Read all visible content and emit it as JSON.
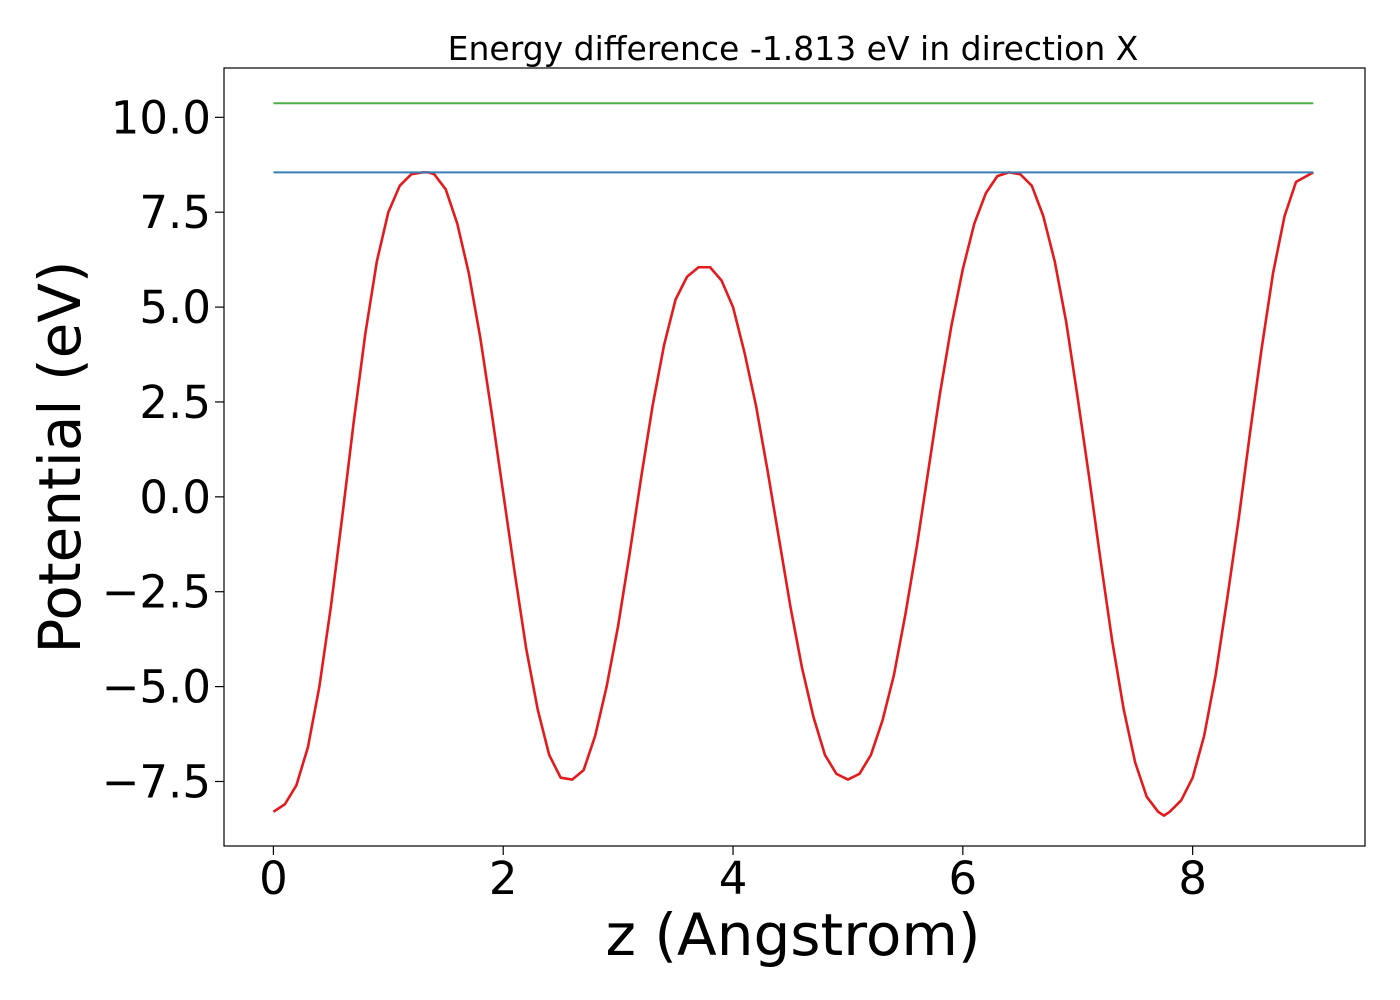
{
  "chart_data": {
    "type": "line",
    "title": "Energy difference -1.813 eV in direction X",
    "xlabel": "z (Angstrom)",
    "ylabel": "Potential (eV)",
    "xlim": [
      -0.43,
      9.5
    ],
    "ylim": [
      -9.2,
      11.3
    ],
    "x_ticks": [
      0,
      2,
      4,
      6,
      8
    ],
    "x_tick_labels": [
      "0",
      "2",
      "4",
      "6",
      "8"
    ],
    "y_ticks": [
      10.0,
      7.5,
      5.0,
      2.5,
      0.0,
      -2.5,
      -5.0,
      -7.5
    ],
    "y_tick_labels": [
      "10.0",
      "7.5",
      "5.0",
      "2.5",
      "0.0",
      "−2.5",
      "−5.0",
      "−7.5"
    ],
    "grid": false,
    "legend": "none",
    "series": [
      {
        "color": "#e41a1c",
        "x": [
          0.0,
          0.1,
          0.2,
          0.3,
          0.4,
          0.5,
          0.6,
          0.7,
          0.8,
          0.9,
          1.0,
          1.1,
          1.2,
          1.3,
          1.35,
          1.4,
          1.5,
          1.6,
          1.7,
          1.8,
          1.9,
          2.0,
          2.1,
          2.2,
          2.3,
          2.4,
          2.5,
          2.6,
          2.7,
          2.8,
          2.9,
          3.0,
          3.1,
          3.2,
          3.3,
          3.4,
          3.5,
          3.6,
          3.7,
          3.8,
          3.9,
          4.0,
          4.1,
          4.2,
          4.3,
          4.4,
          4.5,
          4.55,
          4.6,
          4.7,
          4.8,
          4.9,
          5.0,
          5.1,
          5.2,
          5.3,
          5.4,
          5.5,
          5.6,
          5.7,
          5.8,
          5.9,
          6.0,
          6.1,
          6.2,
          6.3,
          6.4,
          6.5,
          6.6,
          6.7,
          6.8,
          6.9,
          7.0,
          7.1,
          7.2,
          7.3,
          7.4,
          7.5,
          7.6,
          7.7,
          7.75,
          7.8,
          7.9,
          8.0,
          8.1,
          8.2,
          8.3,
          8.4,
          8.5,
          8.6,
          8.7,
          8.8,
          8.9,
          9.05
        ],
        "y": [
          -8.3,
          -8.1,
          -7.6,
          -6.6,
          -5.0,
          -2.9,
          -0.5,
          2.0,
          4.3,
          6.2,
          7.5,
          8.2,
          8.5,
          8.55,
          8.55,
          8.5,
          8.1,
          7.2,
          5.9,
          4.2,
          2.2,
          0.1,
          -2.0,
          -4.0,
          -5.6,
          -6.8,
          -7.4,
          -7.45,
          -7.2,
          -6.3,
          -5.0,
          -3.4,
          -1.5,
          0.5,
          2.4,
          4.0,
          5.2,
          5.8,
          6.05,
          6.05,
          5.7,
          5.0,
          3.8,
          2.4,
          0.7,
          -1.1,
          -2.9,
          -3.7,
          -4.5,
          -5.8,
          -6.8,
          -7.3,
          -7.45,
          -7.3,
          -6.8,
          -5.9,
          -4.7,
          -3.1,
          -1.3,
          0.7,
          2.7,
          4.5,
          6.0,
          7.2,
          8.0,
          8.45,
          8.55,
          8.5,
          8.2,
          7.4,
          6.2,
          4.6,
          2.6,
          0.5,
          -1.7,
          -3.8,
          -5.6,
          -7.0,
          -7.9,
          -8.3,
          -8.4,
          -8.3,
          -8.0,
          -7.4,
          -6.3,
          -4.7,
          -2.7,
          -0.6,
          1.7,
          3.9,
          5.9,
          7.4,
          8.3,
          8.55
        ]
      },
      {
        "color": "#377eb8",
        "x": [
          0.0,
          9.05
        ],
        "y": [
          8.55,
          8.55
        ]
      },
      {
        "color": "#4daf4a",
        "x": [
          0.0,
          9.05
        ],
        "y": [
          10.37,
          10.37
        ]
      }
    ]
  }
}
